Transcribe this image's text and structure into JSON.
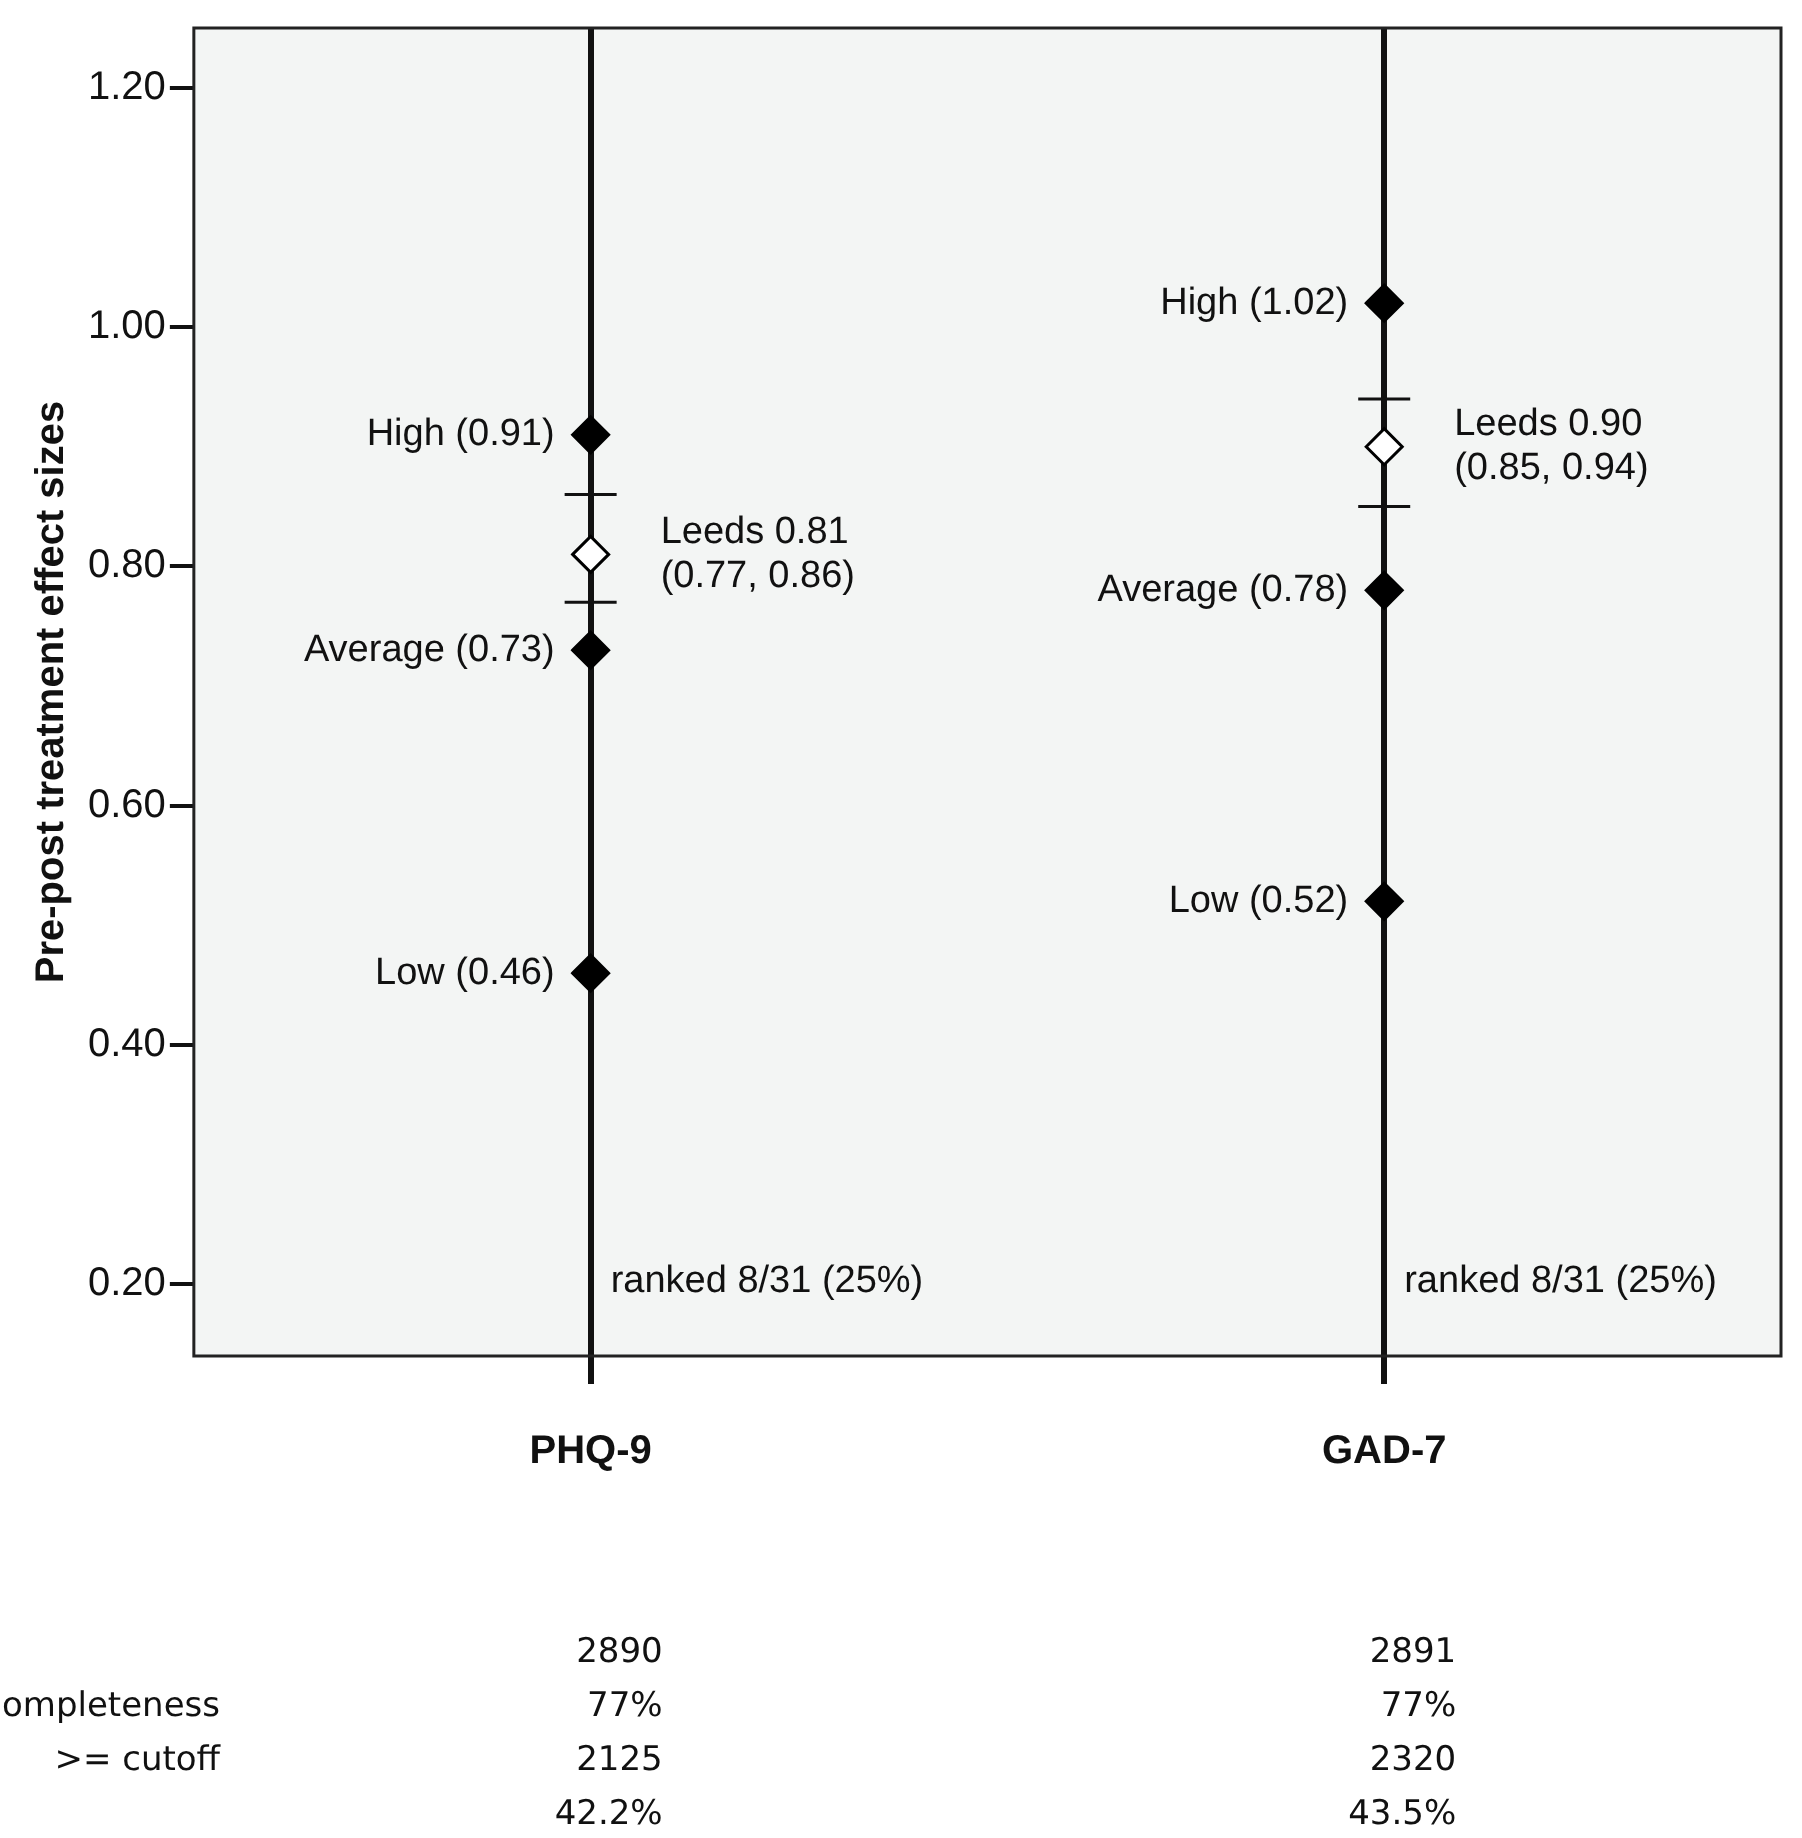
{
  "chart_data": {
    "type": "scatter",
    "ylabel": "Pre-post treatment effect sizes",
    "categories": [
      "PHQ-9",
      "GAD-7"
    ],
    "ylim": [
      0.14,
      1.25
    ],
    "yticks": [
      {
        "value": 0.2,
        "label": "0.20"
      },
      {
        "value": 0.4,
        "label": "0.40"
      },
      {
        "value": 0.6,
        "label": "0.60"
      },
      {
        "value": 0.8,
        "label": "0.80"
      },
      {
        "value": 1.0,
        "label": "1.00"
      },
      {
        "value": 1.2,
        "label": "1.20"
      }
    ],
    "grid": "x",
    "legend": false,
    "marker": "diamond",
    "series": [
      {
        "color": "#000000",
        "values": [
          0.91,
          1.02
        ],
        "value_labels": [
          "High (0.91)",
          "High (1.02)"
        ]
      },
      {
        "color": "#000000",
        "values": [
          0.73,
          0.78
        ],
        "value_labels": [
          "Average (0.73)",
          "Average (0.78)"
        ]
      },
      {
        "color": "#000000",
        "values": [
          0.46,
          0.52
        ],
        "value_labels": [
          "Low (0.46)",
          "Low (0.52)"
        ]
      },
      {
        "color": "#ffffff",
        "values": [
          0.81,
          0.9
        ],
        "errors": [
          [
            0.77,
            0.86
          ],
          [
            0.85,
            0.94
          ]
        ],
        "value_labels": [
          "Leeds 0.81\n(0.77, 0.86)",
          "Leeds 0.90\n(0.85, 0.94)"
        ]
      }
    ],
    "annotations": [
      "ranked 8/31 (25%)",
      "ranked 8/31 (25%)",
      "2890",
      "2891",
      "ompleteness",
      "77%",
      "77%",
      ">= cutoff",
      "2125",
      "2320",
      "42.2%",
      "43.5%"
    ]
  }
}
